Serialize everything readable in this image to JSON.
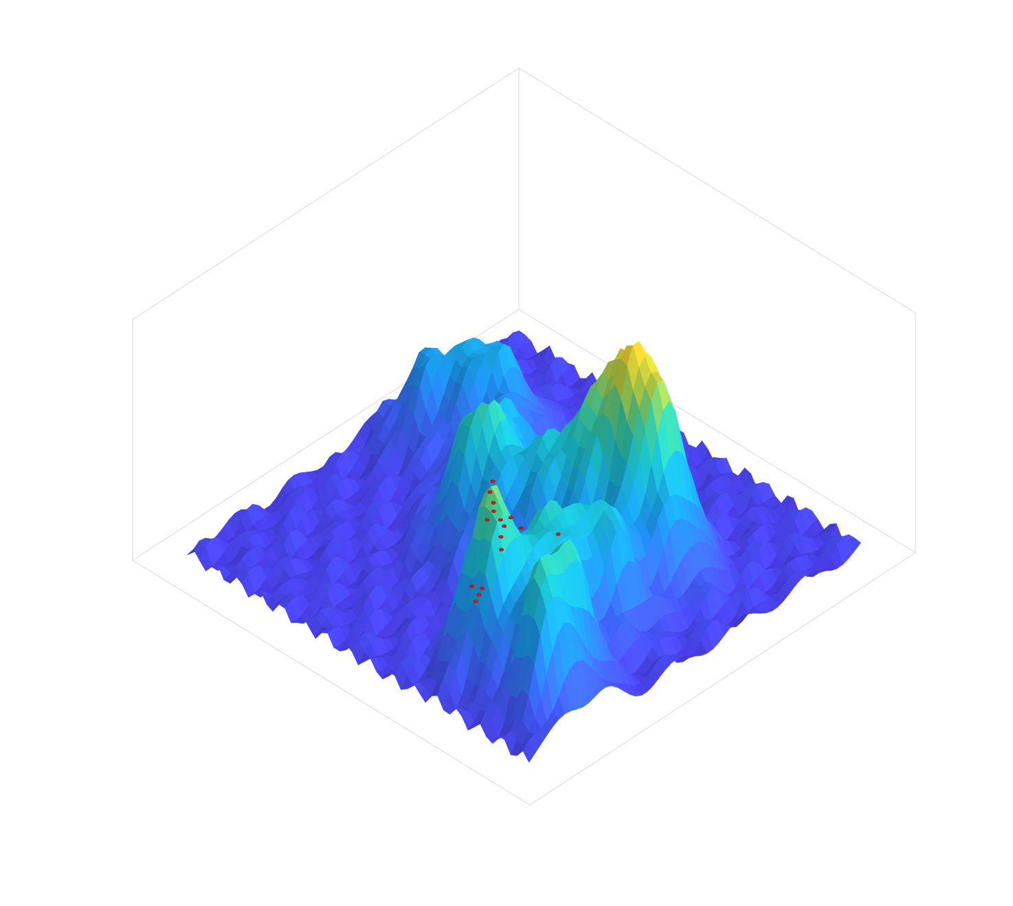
{
  "chart_data": {
    "type": "surface",
    "grid": false,
    "colormap": "parula",
    "colors": {
      "low": "#4a3fe0",
      "mid_low": "#3a6cf6",
      "mid": "#1aa6d9",
      "mid_high": "#3cc29a",
      "high": "#f5c02c",
      "marker": "#e3101c",
      "box": "#d7d7d7"
    },
    "xlim": [
      0,
      1
    ],
    "ylim": [
      0,
      1
    ],
    "zlim": [
      0,
      1
    ],
    "peaks": [
      {
        "x": 0.08,
        "y": 0.12,
        "height": 0.75,
        "spread": 0.045
      },
      {
        "x": 0.1,
        "y": 0.22,
        "height": 0.78,
        "spread": 0.05
      },
      {
        "x": 0.26,
        "y": 0.16,
        "height": 1.0,
        "spread": 0.06
      },
      {
        "x": 0.22,
        "y": 0.3,
        "height": 0.72,
        "spread": 0.05
      },
      {
        "x": 0.18,
        "y": 0.42,
        "height": 0.68,
        "spread": 0.055
      },
      {
        "x": 0.22,
        "y": 0.62,
        "height": 0.85,
        "spread": 0.065
      },
      {
        "x": 0.32,
        "y": 0.6,
        "height": 0.78,
        "spread": 0.07
      },
      {
        "x": 0.4,
        "y": 0.48,
        "height": 0.6,
        "spread": 0.09
      },
      {
        "x": 0.55,
        "y": 0.4,
        "height": 0.7,
        "spread": 0.06
      },
      {
        "x": 0.62,
        "y": 0.55,
        "height": 0.55,
        "spread": 0.08
      },
      {
        "x": 0.78,
        "y": 0.7,
        "height": 0.55,
        "spread": 0.07
      },
      {
        "x": 0.88,
        "y": 0.6,
        "height": 0.45,
        "spread": 0.06
      }
    ],
    "markers": [
      {
        "x": 0.5,
        "y": 0.44,
        "z": 0.18
      },
      {
        "x": 0.52,
        "y": 0.45,
        "z": 0.18
      },
      {
        "x": 0.51,
        "y": 0.47,
        "z": 0.18
      },
      {
        "x": 0.55,
        "y": 0.46,
        "z": 0.18
      },
      {
        "x": 0.54,
        "y": 0.43,
        "z": 0.18
      },
      {
        "x": 0.48,
        "y": 0.41,
        "z": 0.18
      },
      {
        "x": 0.57,
        "y": 0.48,
        "z": 0.18
      },
      {
        "x": 0.47,
        "y": 0.46,
        "z": 0.18
      },
      {
        "x": 0.6,
        "y": 0.5,
        "z": 0.18
      },
      {
        "x": 0.45,
        "y": 0.38,
        "z": 0.18
      },
      {
        "x": 0.4,
        "y": 0.5,
        "z": 0.18
      },
      {
        "x": 0.62,
        "y": 0.53,
        "z": 0.18
      },
      {
        "x": 0.38,
        "y": 0.24,
        "z": 0.18
      },
      {
        "x": 0.39,
        "y": 0.26,
        "z": 0.18
      },
      {
        "x": 0.37,
        "y": 0.22,
        "z": 0.18
      },
      {
        "x": 0.41,
        "y": 0.25,
        "z": 0.18
      }
    ]
  }
}
